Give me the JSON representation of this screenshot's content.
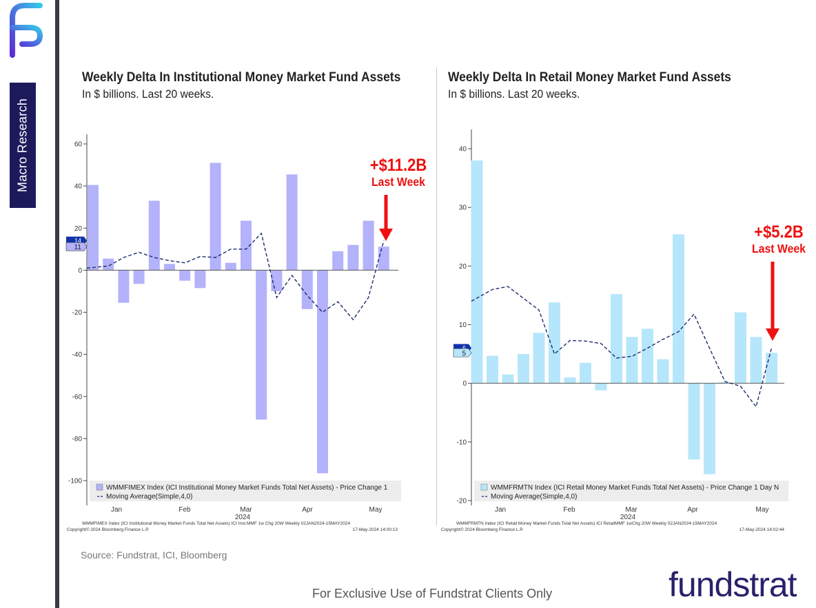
{
  "branding": {
    "sidebar_label": "Macro Research",
    "logo_mark_icon": "fundstrat-fs-icon",
    "source": "Source: Fundstrat, ICI, Bloomberg",
    "footer": "For Exclusive Use of Fundstrat Clients Only",
    "brand_name": "fundstrat"
  },
  "colors": {
    "inst_bar": "#b3b2fb",
    "retail_bar": "#b6e6fb",
    "ma_line": "#1c2a6b",
    "annotation": "#ee1111",
    "brand": "#28226b"
  },
  "chart_data": [
    {
      "type": "bar",
      "title": "Weekly Delta In Institutional Money Market Fund Assets",
      "subtitle": "In $ billions. Last 20 weeks.",
      "x_month_labels": [
        "Jan",
        "Feb",
        "Mar",
        "Apr",
        "May"
      ],
      "x_year_label": "2024",
      "ylim": [
        -100,
        60
      ],
      "yticks": [
        60,
        40,
        20,
        0,
        -20,
        -40,
        -60,
        -80,
        -100
      ],
      "series": [
        {
          "name": "WMMFIMEX Index (ICI Institutional Money Market Funds Total Net Assets) - Price Change 1",
          "type": "bar",
          "values": [
            40.5,
            5.5,
            -15.5,
            -6.5,
            33,
            3,
            -5,
            -8.5,
            51,
            3.5,
            23.5,
            -71,
            -10,
            45.5,
            -18.5,
            -96.5,
            9,
            12,
            23.5,
            11.2
          ]
        },
        {
          "name": "Moving Average(Simple,4,0)",
          "type": "line",
          "values": [
            1,
            2,
            6,
            8.5,
            6,
            4.5,
            3.5,
            6.5,
            6,
            10,
            10,
            17.5,
            -13,
            -2.5,
            -12,
            -20,
            -15,
            -23.5,
            -13,
            14
          ]
        }
      ],
      "axis_tags": [
        "14",
        "11"
      ],
      "annotation": {
        "value": "+$11.2B",
        "label": "Last Week"
      },
      "footnote_left": "WMMFIMEX Index (ICI Institutional Money Market Funds Total Net Assets) ICI Inst.MMF 1w Chg 20W  Weekly 02JAN2024-15MAY2024",
      "footnote_copyright": "Copyright© 2024 Bloomberg Finance L.P.",
      "footnote_right": "17-May-2024 14:00:13"
    },
    {
      "type": "bar",
      "title": "Weekly Delta In Retail Money Market Fund Assets",
      "subtitle": "In $ billions. Last 20 weeks.",
      "x_month_labels": [
        "Jan",
        "Feb",
        "Mar",
        "Apr",
        "May"
      ],
      "x_year_label": "2024",
      "ylim": [
        -20,
        40
      ],
      "yticks": [
        40,
        30,
        20,
        10,
        0,
        -10,
        -20
      ],
      "series": [
        {
          "name": "WMMFRMTN Index (ICI Retail Money Market Funds Total Net Assets) - Price Change 1 Day N",
          "type": "bar",
          "values": [
            38,
            4.7,
            1.5,
            5,
            8.6,
            13.8,
            1,
            3.5,
            -1.2,
            15.2,
            7.9,
            9.3,
            4.1,
            25.4,
            -13,
            -15.5,
            0.2,
            12.1,
            7.9,
            5.2
          ]
        },
        {
          "name": "Moving Average(Simple,4,0)",
          "type": "line",
          "values": [
            14,
            16,
            16.5,
            14.5,
            12.5,
            5,
            7.3,
            7.2,
            6.8,
            4.3,
            4.6,
            6,
            7.5,
            8.8,
            11.8,
            6,
            0.3,
            -0.5,
            -4,
            6
          ]
        }
      ],
      "axis_tags": [
        "6",
        "5"
      ],
      "annotation": {
        "value": "+$5.2B",
        "label": "Last Week"
      },
      "footnote_left": "WMMFRMTN Index (ICI Retail Money Market Funds Total Net Assets) ICI RetailMMF 1wChg 20W  Weekly 02JAN2024-15MAY2024",
      "footnote_copyright": "Copyright© 2024 Bloomberg Finance L.P.",
      "footnote_right": "17-May-2024 14:02:44"
    }
  ]
}
